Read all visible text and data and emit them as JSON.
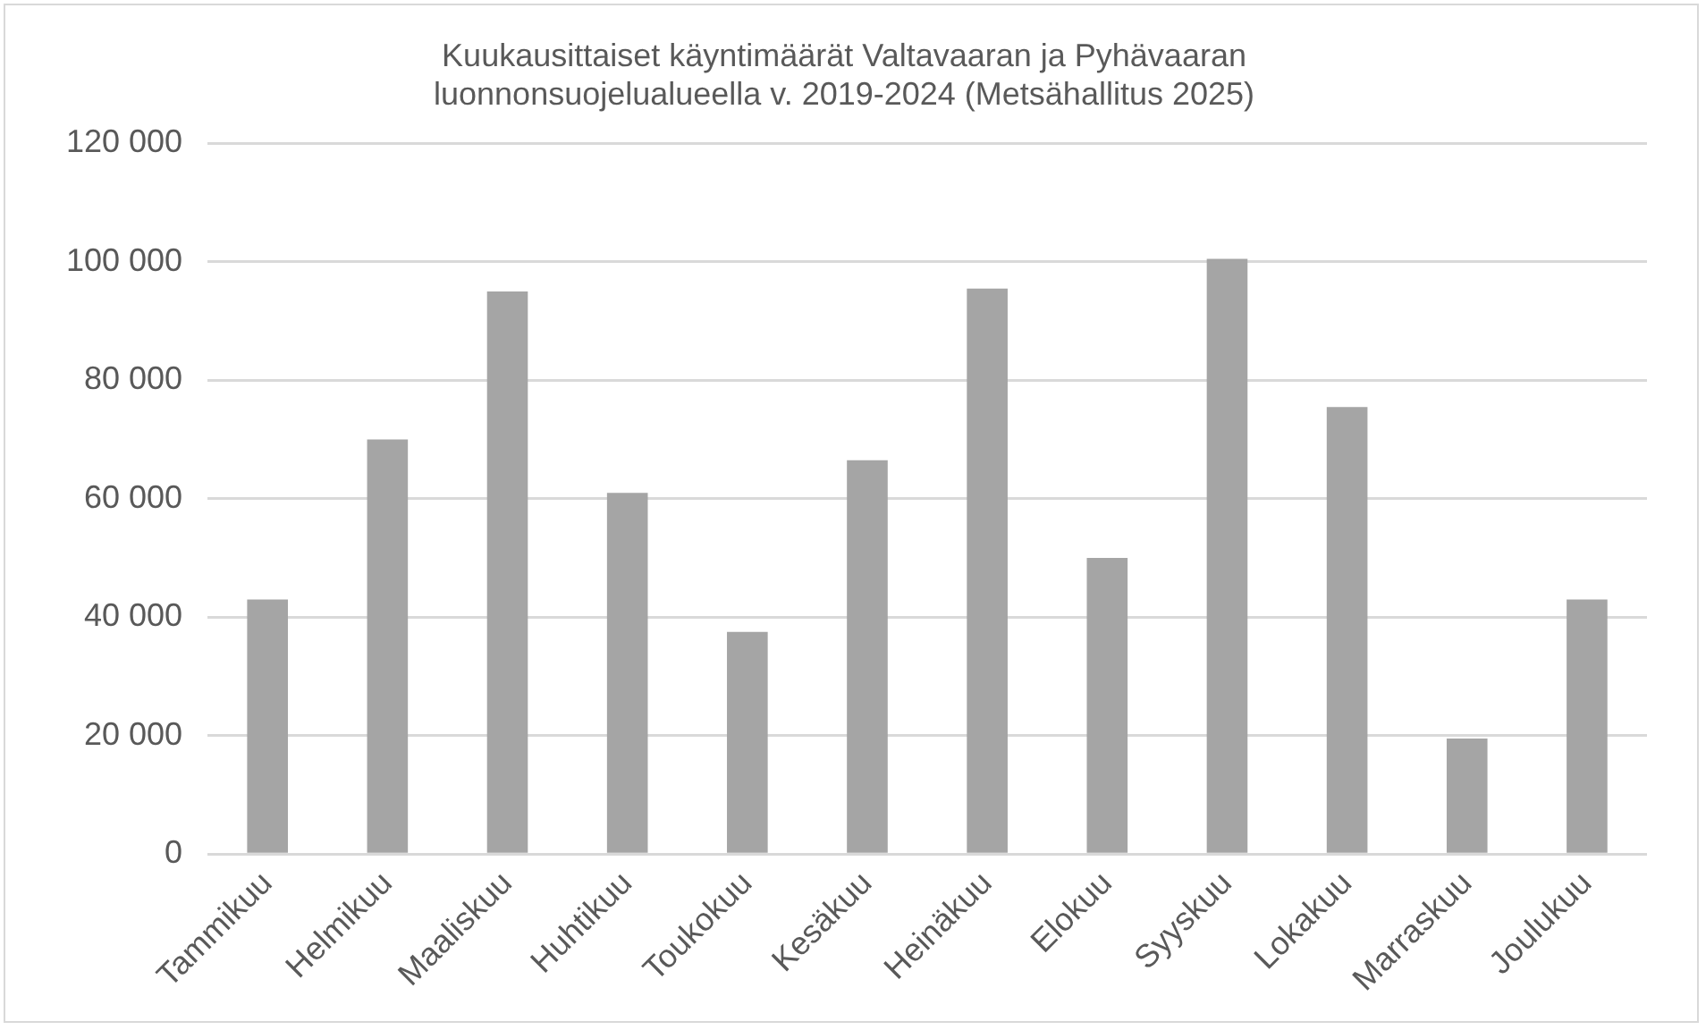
{
  "chart_data": {
    "type": "bar",
    "title": [
      "Kuukausittaiset käyntimäärät Valtavaaran ja Pyhävaaran",
      "luonnonsuojelualueella v. 2019-2024 (Metsähallitus 2025)"
    ],
    "categories": [
      "Tammikuu",
      "Helmikuu",
      "Maaliskuu",
      "Huhtikuu",
      "Toukokuu",
      "Kesäkuu",
      "Heinäkuu",
      "Elokuu",
      "Syyskuu",
      "Lokakuu",
      "Marraskuu",
      "Joulukuu"
    ],
    "values": [
      43000,
      70000,
      95000,
      61000,
      37500,
      66500,
      95500,
      50000,
      100500,
      75500,
      19500,
      43000
    ],
    "color": "#a5a5a5",
    "ylim": [
      0,
      120000
    ],
    "yticks": [
      0,
      {
        "value": 20000,
        "label": "20 000"
      },
      {
        "value": 40000,
        "label": "40 000"
      },
      {
        "value": 60000,
        "label": "60 000"
      },
      {
        "value": 80000,
        "label": "80 000"
      },
      {
        "value": 100000,
        "label": "100 000"
      },
      {
        "value": 120000,
        "label": "120 000"
      }
    ],
    "grid": "y",
    "legend": false
  }
}
